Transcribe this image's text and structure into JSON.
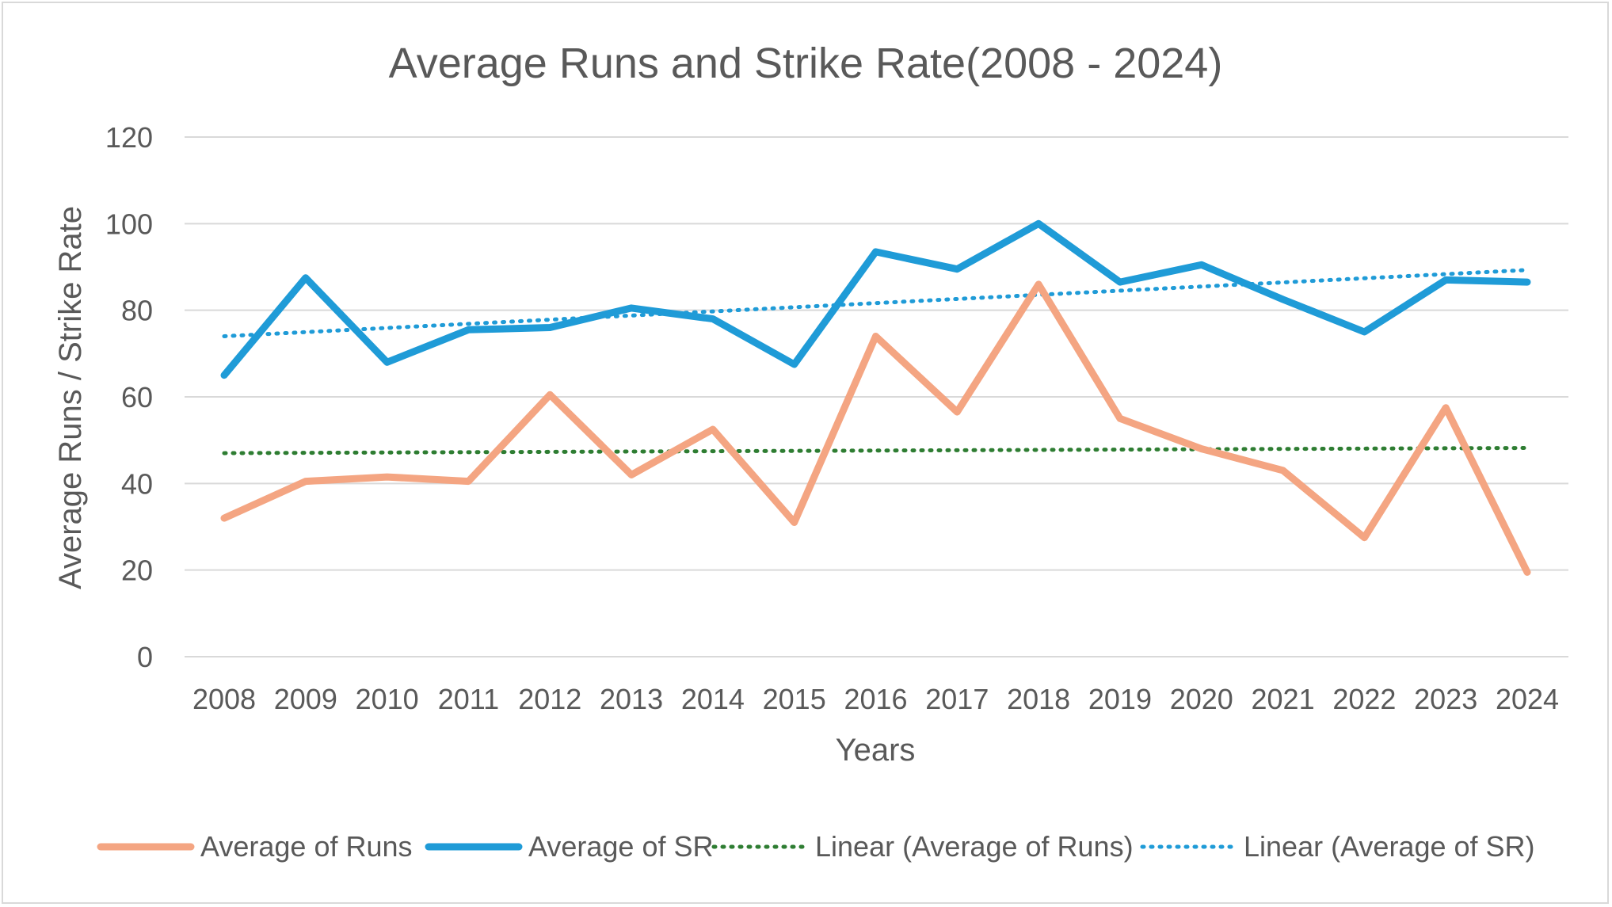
{
  "chart_data": {
    "type": "line",
    "title": "Average Runs and Strike Rate(2008 - 2024)",
    "xlabel": "Years",
    "ylabel": "Average Runs / Strike Rate",
    "ylim": [
      0,
      120
    ],
    "yticks": [
      0,
      20,
      40,
      60,
      80,
      100,
      120
    ],
    "grid": true,
    "legend_position": "bottom",
    "categories": [
      "2008",
      "2009",
      "2010",
      "2011",
      "2012",
      "2013",
      "2014",
      "2015",
      "2016",
      "2017",
      "2018",
      "2019",
      "2020",
      "2021",
      "2022",
      "2023",
      "2024"
    ],
    "series": [
      {
        "name": "Average of Runs",
        "color": "#f4a582",
        "style": "solid",
        "values": [
          32,
          40.5,
          41.5,
          40.5,
          60.5,
          42,
          52.5,
          31,
          74,
          56.5,
          86,
          55,
          48,
          43,
          27.5,
          57.5,
          19.5
        ]
      },
      {
        "name": "Average of SR",
        "color": "#1f9bd7",
        "style": "solid",
        "values": [
          65,
          87.5,
          68,
          75.5,
          76,
          80.5,
          78,
          67.5,
          93.5,
          89.5,
          100,
          86.5,
          90.5,
          82.5,
          75,
          87,
          86.5
        ]
      }
    ],
    "trendlines": [
      {
        "name": "Linear (Average of Runs)",
        "color": "#2e7d32",
        "style": "dotted",
        "start": 47,
        "end": 48.2
      },
      {
        "name": "Linear (Average of SR)",
        "color": "#1f9bd7",
        "style": "dotted",
        "start": 74,
        "end": 89.3
      }
    ]
  }
}
